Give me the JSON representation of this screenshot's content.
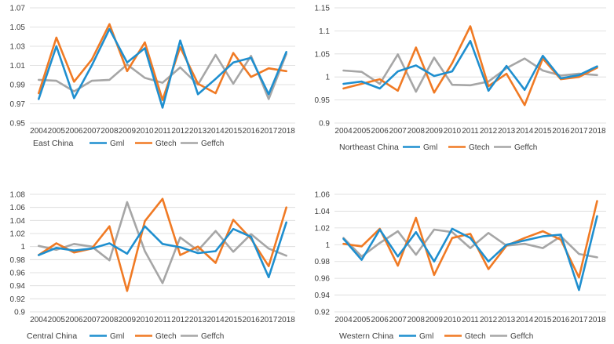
{
  "colors": {
    "gml": "#1f8fcf",
    "gtech": "#f07a24",
    "geffch": "#a6a6a6",
    "grid": "#d9d9d9",
    "text": "#404040"
  },
  "chart_data": [
    {
      "type": "line",
      "title": "East China",
      "x": [
        "2004",
        "2005",
        "2006",
        "2007",
        "2008",
        "2009",
        "2010",
        "2011",
        "2012",
        "2013",
        "2014",
        "2015",
        "2016",
        "2017",
        "2018"
      ],
      "ylim": [
        0.95,
        1.07
      ],
      "yticks": [
        "0.95",
        "0.97",
        "0.99",
        "1.01",
        "1.03",
        "1.05",
        "1.07"
      ],
      "legend": [
        "Gml",
        "Gtech",
        "Geffch"
      ],
      "series": [
        {
          "name": "Gml",
          "values": [
            0.975,
            1.03,
            0.976,
            1.01,
            1.048,
            1.013,
            1.028,
            0.966,
            1.036,
            0.98,
            0.996,
            1.013,
            1.018,
            0.98,
            1.024
          ]
        },
        {
          "name": "Gtech",
          "values": [
            0.981,
            1.039,
            0.993,
            1.016,
            1.053,
            1.004,
            1.034,
            0.974,
            1.029,
            0.991,
            0.981,
            1.023,
            0.998,
            1.007,
            1.004
          ]
        },
        {
          "name": "Geffch",
          "values": [
            0.995,
            0.994,
            0.983,
            0.994,
            0.995,
            1.011,
            0.997,
            0.992,
            1.008,
            0.99,
            1.021,
            0.991,
            1.02,
            0.975,
            1.022
          ]
        }
      ]
    },
    {
      "type": "line",
      "title": "Northeast China",
      "x": [
        "2004",
        "2005",
        "2006",
        "2007",
        "2008",
        "2009",
        "2010",
        "2011",
        "2012",
        "2013",
        "2014",
        "2015",
        "2016",
        "2017",
        "2018"
      ],
      "ylim": [
        0.9,
        1.15
      ],
      "yticks": [
        "0.9",
        "0.95",
        "1",
        "1.05",
        "1.1",
        "1.15"
      ],
      "legend": [
        "Gml",
        "Gtech",
        "Geffch"
      ],
      "series": [
        {
          "name": "Gml",
          "values": [
            0.985,
            0.99,
            0.975,
            1.012,
            1.025,
            1.002,
            1.012,
            1.078,
            0.97,
            1.024,
            0.972,
            1.046,
            0.997,
            1.004,
            1.023
          ]
        },
        {
          "name": "Gtech",
          "values": [
            0.975,
            0.985,
            0.995,
            0.97,
            1.064,
            0.966,
            1.03,
            1.11,
            0.98,
            1.007,
            0.939,
            1.04,
            0.995,
            1.0,
            1.02
          ]
        },
        {
          "name": "Geffch",
          "values": [
            1.014,
            1.011,
            0.985,
            1.049,
            0.968,
            1.042,
            0.983,
            0.982,
            0.99,
            1.019,
            1.04,
            1.014,
            1.003,
            1.007,
            1.004
          ]
        }
      ]
    },
    {
      "type": "line",
      "title": "Central China",
      "x": [
        "2004",
        "2005",
        "2006",
        "2007",
        "2008",
        "2009",
        "2010",
        "2011",
        "2012",
        "2013",
        "2014",
        "2015",
        "2016",
        "2017",
        "2018"
      ],
      "ylim": [
        0.9,
        1.08
      ],
      "yticks": [
        "0.9",
        "0.92",
        "0.94",
        "0.96",
        "0.98",
        "1",
        "1.02",
        "1.04",
        "1.06",
        "1.08"
      ],
      "legend": [
        "Gml",
        "Gtech",
        "Geffch"
      ],
      "series": [
        {
          "name": "Gml",
          "values": [
            0.987,
            0.998,
            0.994,
            0.997,
            1.005,
            0.989,
            1.031,
            1.004,
            0.999,
            0.99,
            0.993,
            1.027,
            1.015,
            0.953,
            1.037
          ]
        },
        {
          "name": "Gtech",
          "values": [
            0.987,
            1.005,
            0.991,
            0.997,
            1.031,
            0.932,
            1.039,
            1.073,
            0.987,
            1.0,
            0.975,
            1.041,
            1.012,
            0.97,
            1.06
          ]
        },
        {
          "name": "Geffch",
          "values": [
            1.001,
            0.995,
            1.004,
            1.0,
            0.979,
            1.068,
            0.993,
            0.944,
            1.014,
            0.994,
            1.024,
            0.992,
            1.019,
            0.997,
            0.986
          ]
        }
      ]
    },
    {
      "type": "line",
      "title": "Western China",
      "x": [
        "2004",
        "2005",
        "2006",
        "2007",
        "2008",
        "2009",
        "2010",
        "2011",
        "2012",
        "2013",
        "2014",
        "2015",
        "2016",
        "2017",
        "2018"
      ],
      "ylim": [
        0.92,
        1.06
      ],
      "yticks": [
        "0.92",
        "0.94",
        "0.96",
        "0.98",
        "1",
        "1.02",
        "1.04",
        "1.06"
      ],
      "legend": [
        "Gml",
        "Gtech",
        "Geffch"
      ],
      "series": [
        {
          "name": "Gml",
          "values": [
            1.007,
            0.982,
            1.018,
            0.986,
            1.015,
            0.98,
            1.019,
            1.008,
            0.98,
            1.0,
            1.005,
            1.01,
            1.012,
            0.946,
            1.034
          ]
        },
        {
          "name": "Gtech",
          "values": [
            1.001,
            0.998,
            1.019,
            0.975,
            1.032,
            0.964,
            1.008,
            1.013,
            0.971,
            0.999,
            1.008,
            1.016,
            1.006,
            0.961,
            1.052
          ]
        },
        {
          "name": "Geffch",
          "values": [
            1.008,
            0.986,
            1.002,
            1.016,
            0.988,
            1.018,
            1.015,
            0.996,
            1.014,
            0.999,
            1.001,
            0.996,
            1.01,
            0.989,
            0.985
          ]
        }
      ]
    }
  ]
}
